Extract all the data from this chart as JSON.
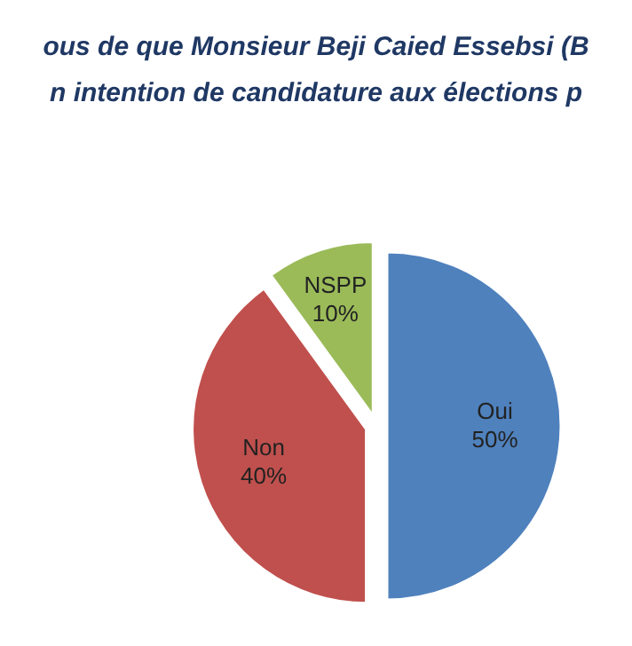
{
  "chart_data": {
    "type": "pie",
    "title": [
      "ous de que Monsieur Beji Caied Essebsi (B",
      "n intention de candidature aux élections p"
    ],
    "categories": [
      "Oui",
      "Non",
      "NSPP"
    ],
    "values": [
      50,
      40,
      10
    ],
    "value_labels": [
      "50%",
      "40%",
      "10%"
    ],
    "colors": [
      "#4f81bd",
      "#c0504d",
      "#9bbb59"
    ]
  }
}
